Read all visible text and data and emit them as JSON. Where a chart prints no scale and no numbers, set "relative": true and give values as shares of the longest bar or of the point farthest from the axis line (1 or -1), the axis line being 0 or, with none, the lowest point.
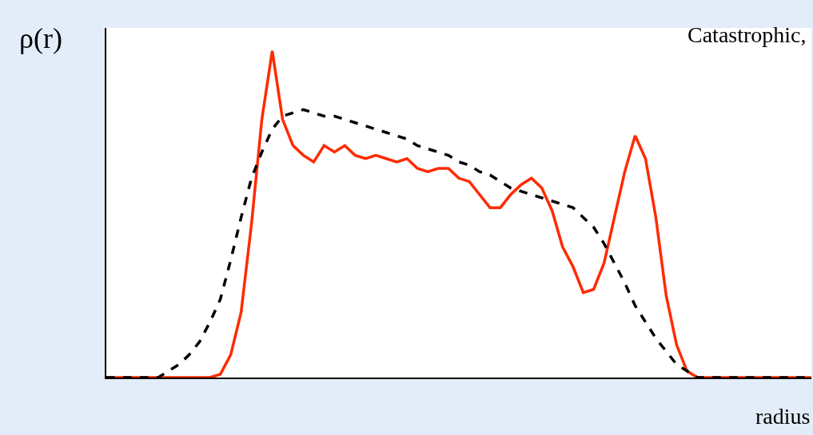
{
  "chart_data": {
    "type": "line",
    "relative": true,
    "xlabel": "radius",
    "ylabel": "ρ(r)",
    "annotations": [
      "Catastrophic,"
    ],
    "grid": false,
    "marker": "none",
    "categories": [
      null,
      null,
      null,
      null,
      null,
      null,
      null,
      null,
      null,
      null,
      null,
      null,
      null,
      null,
      null,
      null,
      null,
      null,
      null,
      null,
      null,
      null,
      null,
      null,
      null,
      null,
      null,
      null,
      null,
      null,
      null,
      null,
      null,
      null,
      null,
      null,
      null,
      null,
      null,
      null,
      null,
      null,
      null,
      null,
      null,
      null,
      null,
      null,
      null,
      null,
      null,
      null,
      null,
      null,
      null,
      null,
      null,
      null,
      null,
      null,
      null,
      null,
      null,
      null,
      null,
      null,
      null,
      null,
      null
    ],
    "series": [
      {
        "color": "#ff2a00",
        "line_style": "solid",
        "values": [
          0,
          0,
          0,
          0,
          0,
          0,
          0,
          0,
          0,
          0,
          0,
          0.01,
          0.07,
          0.2,
          0.47,
          0.79,
          1,
          0.79,
          0.71,
          0.68,
          0.66,
          0.71,
          0.69,
          0.71,
          0.68,
          0.67,
          0.68,
          0.67,
          0.66,
          0.67,
          0.64,
          0.63,
          0.64,
          0.64,
          0.61,
          0.6,
          0.56,
          0.52,
          0.52,
          0.56,
          0.59,
          0.61,
          0.58,
          0.51,
          0.4,
          0.34,
          0.26,
          0.27,
          0.35,
          0.49,
          0.63,
          0.74,
          0.67,
          0.49,
          0.25,
          0.1,
          0.02,
          0,
          0,
          0,
          0,
          0,
          0,
          0,
          0,
          0,
          0,
          0,
          0
        ]
      },
      {
        "color": "#000000",
        "line_style": "dashed",
        "values": [
          0,
          0,
          0,
          0,
          0,
          0,
          0.02,
          0.04,
          0.07,
          0.11,
          0.17,
          0.24,
          0.36,
          0.49,
          0.61,
          0.69,
          0.76,
          0.8,
          0.81,
          0.82,
          0.81,
          0.8,
          0.8,
          0.79,
          0.78,
          0.77,
          0.76,
          0.75,
          0.74,
          0.73,
          0.71,
          0.7,
          0.69,
          0.68,
          0.66,
          0.65,
          0.63,
          0.62,
          0.6,
          0.58,
          0.57,
          0.56,
          0.55,
          0.54,
          0.53,
          0.52,
          0.49,
          0.46,
          0.41,
          0.35,
          0.29,
          0.22,
          0.17,
          0.12,
          0.08,
          0.04,
          0.02,
          0,
          0,
          0,
          0,
          0,
          0,
          0,
          0,
          0,
          0,
          0,
          0
        ]
      }
    ]
  }
}
